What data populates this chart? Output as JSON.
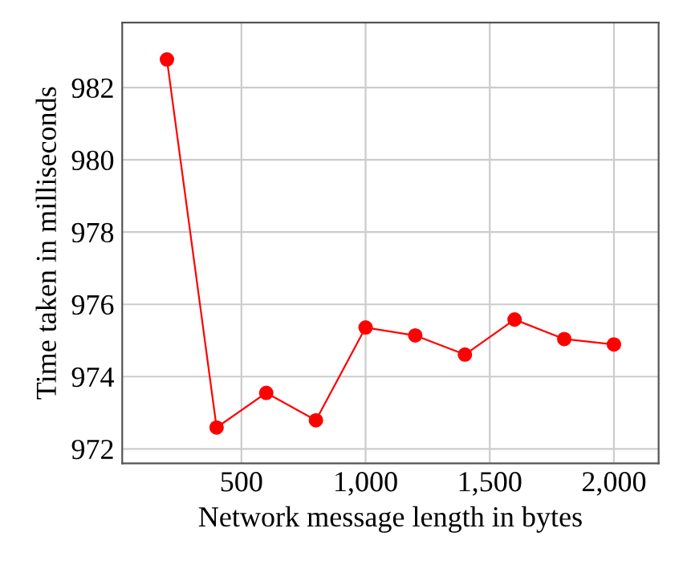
{
  "chart_data": {
    "type": "line",
    "xlabel": "Network message length in bytes",
    "ylabel": "Time taken in milliseconds",
    "x": [
      200,
      400,
      600,
      800,
      1000,
      1200,
      1400,
      1600,
      1800,
      2000
    ],
    "series": [
      {
        "color": "#ff0000",
        "values": [
          982.78,
          972.59,
          973.55,
          972.79,
          975.36,
          975.14,
          974.61,
          975.58,
          975.04,
          974.89
        ]
      }
    ],
    "xlim": [
      20,
      2180
    ],
    "ylim": [
      971.6,
      983.8
    ],
    "xticks": [
      500,
      {
        "value": 1000,
        "label": "1,000"
      },
      {
        "value": 1500,
        "label": "1,500"
      },
      {
        "value": 2000,
        "label": "2,000"
      }
    ],
    "yticks": [
      972,
      974,
      976,
      978,
      980,
      982
    ],
    "grid": true,
    "marker": "circle",
    "line_style": "solid"
  }
}
